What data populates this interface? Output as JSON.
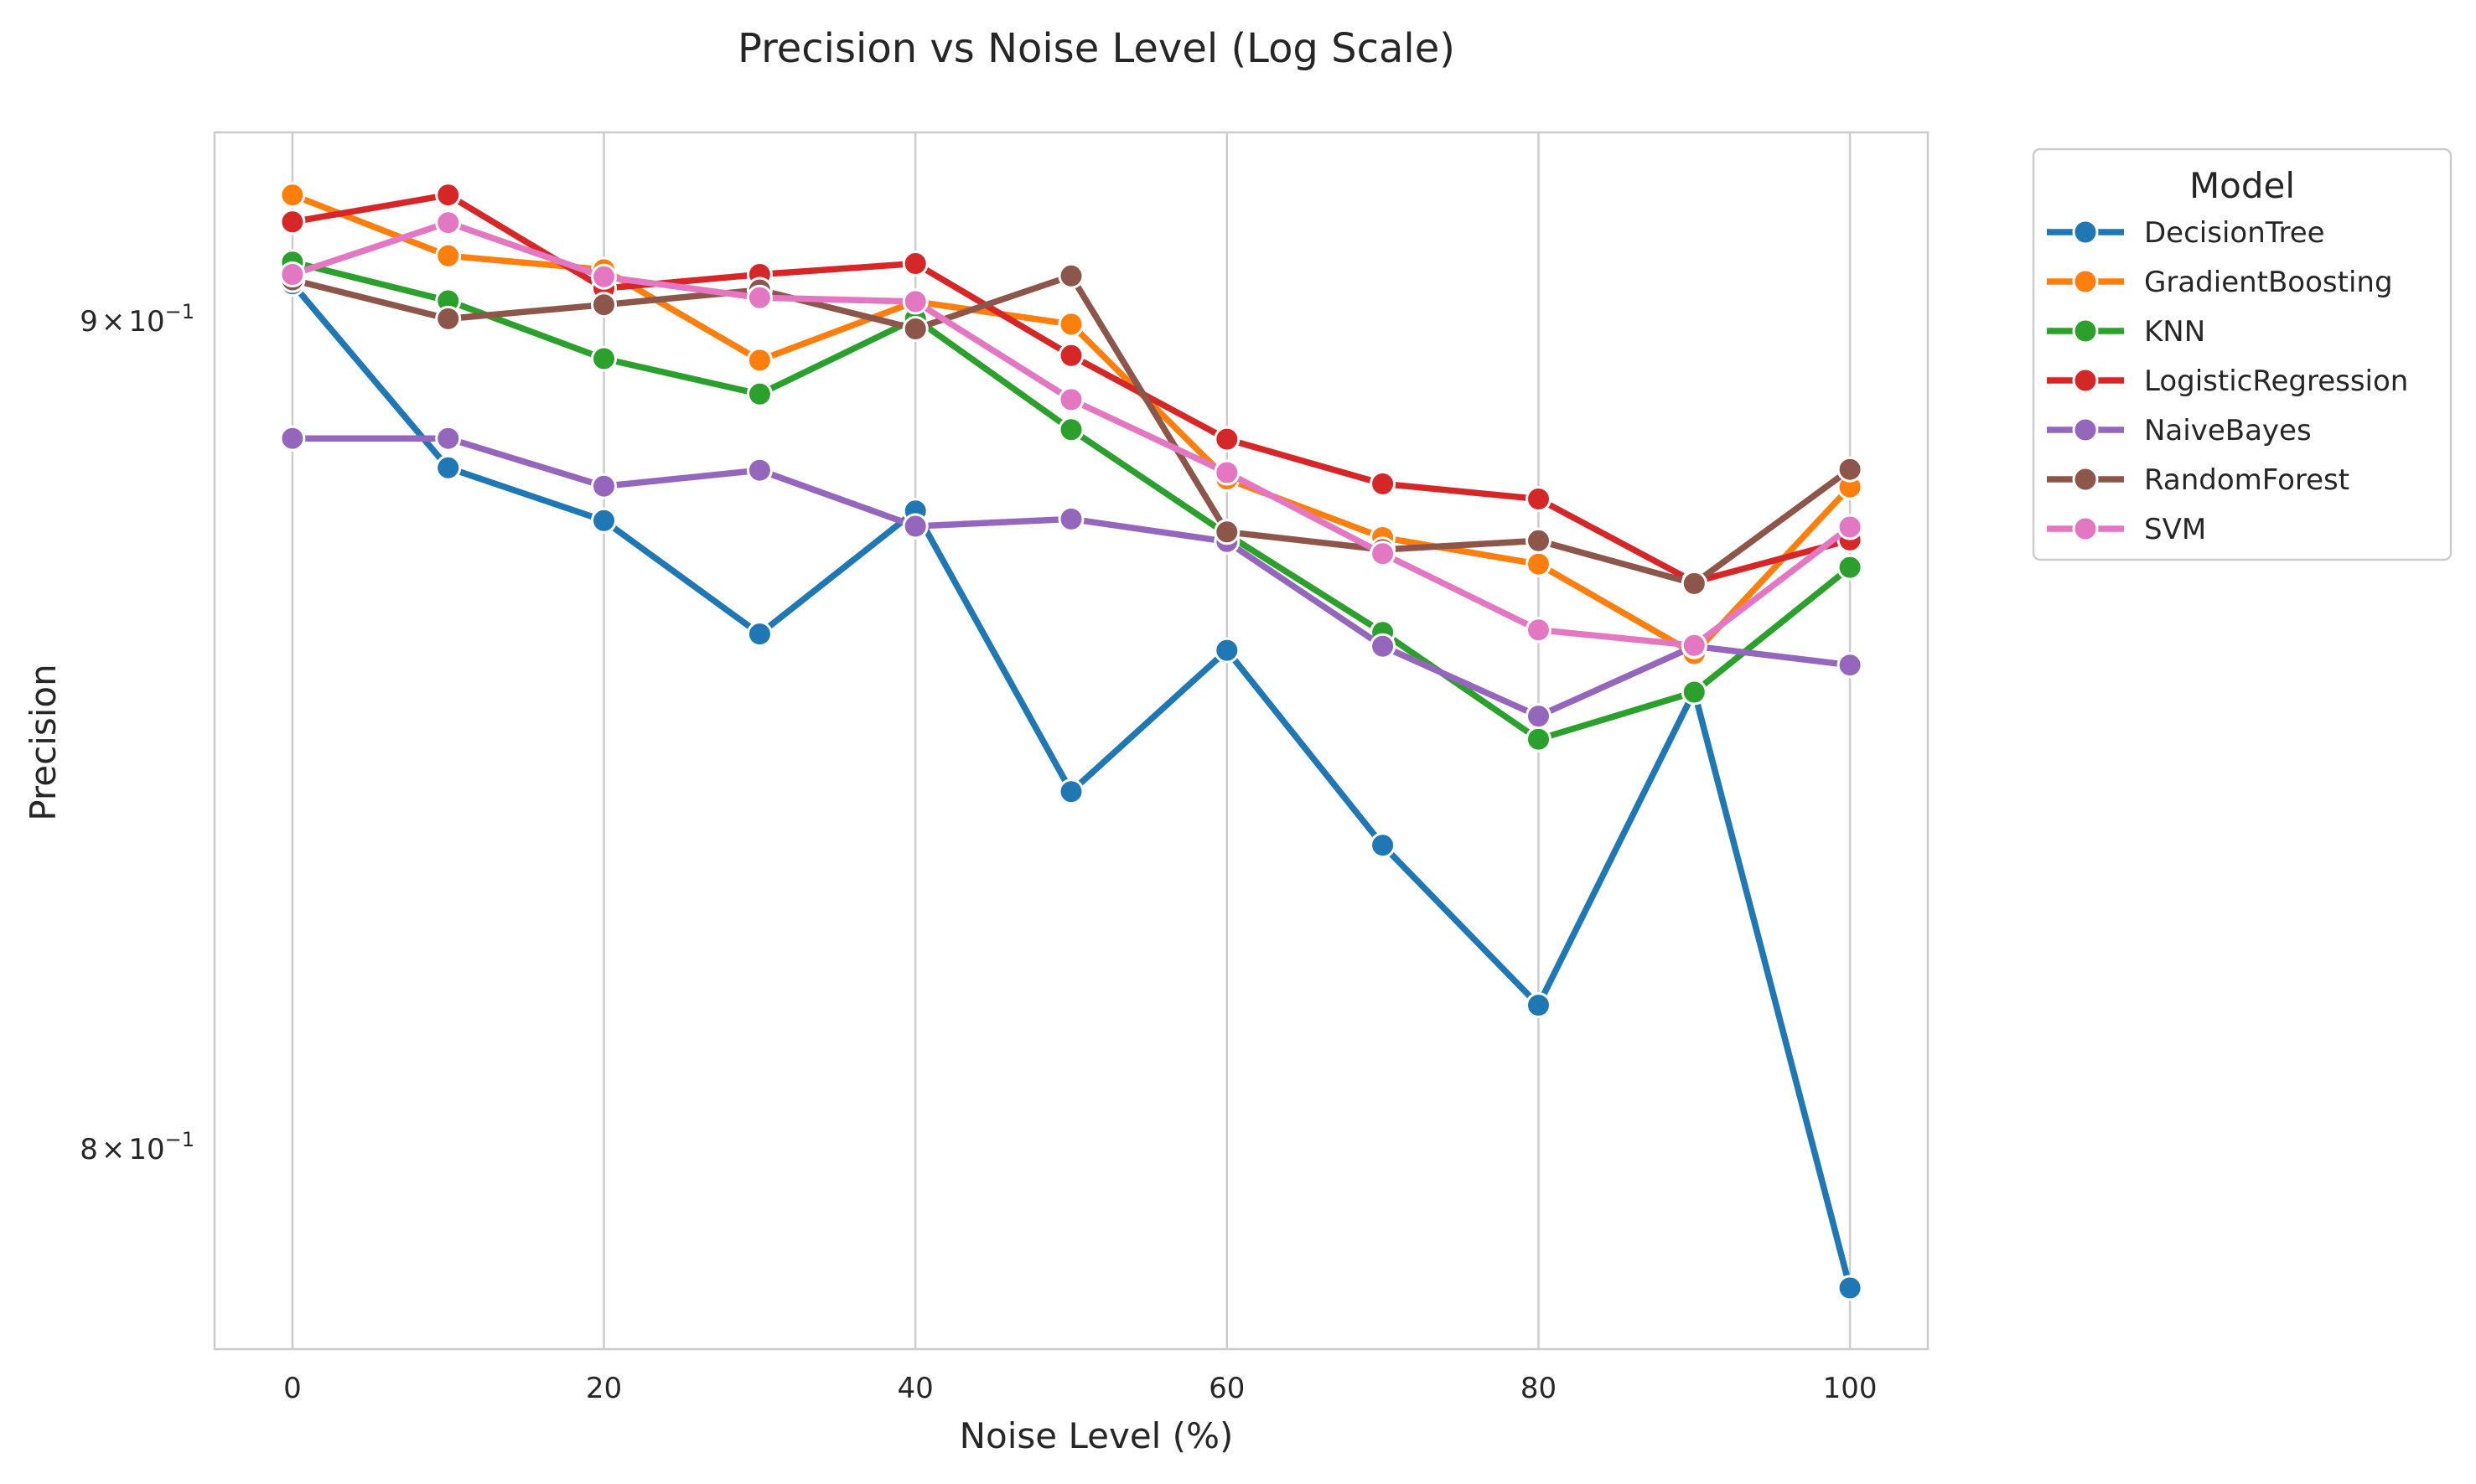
{
  "chart_data": {
    "type": "line",
    "title": "Precision vs Noise Level (Log Scale)",
    "xlabel": "Noise Level (%)",
    "ylabel": "Precision",
    "x": [
      0,
      10,
      20,
      30,
      40,
      50,
      60,
      70,
      80,
      90,
      100
    ],
    "xlim": [
      -5,
      105
    ],
    "xticks": [
      0,
      20,
      40,
      60,
      80,
      100
    ],
    "xtick_labels": [
      "0",
      "20",
      "40",
      "60",
      "80",
      "100"
    ],
    "yscale": "log",
    "ylim": [
      0.7775,
      0.9245
    ],
    "yticks": [
      0.8,
      0.9
    ],
    "ytick_labels": [
      {
        "mantissa": "8",
        "base": "10",
        "exponent": "−1"
      },
      {
        "mantissa": "9",
        "base": "10",
        "exponent": "−1"
      }
    ],
    "grid": "vertical",
    "legend": {
      "title": "Model",
      "placement": "outside-top-right"
    },
    "series": [
      {
        "name": "DecisionTree",
        "color": "#1f77b4",
        "values": [
          0.9048,
          0.8814,
          0.8748,
          0.8608,
          0.876,
          0.8417,
          0.8588,
          0.8353,
          0.8165,
          0.8538,
          0.7843
        ]
      },
      {
        "name": "GradientBoosting",
        "color": "#ff7f0e",
        "values": [
          0.9163,
          0.9084,
          0.9066,
          0.895,
          0.9025,
          0.8996,
          0.88,
          0.8727,
          0.8694,
          0.8584,
          0.879
        ]
      },
      {
        "name": "KNN",
        "color": "#2ca02c",
        "values": [
          0.9076,
          0.9026,
          0.8952,
          0.8907,
          0.9003,
          0.8862,
          0.8731,
          0.861,
          0.848,
          0.8537,
          0.869
        ]
      },
      {
        "name": "LogisticRegression",
        "color": "#d62728",
        "values": [
          0.9128,
          0.9163,
          0.9042,
          0.906,
          0.9074,
          0.8956,
          0.885,
          0.8794,
          0.8775,
          0.8672,
          0.8724
        ]
      },
      {
        "name": "NaiveBayes",
        "color": "#9467bd",
        "values": [
          0.8851,
          0.8851,
          0.8791,
          0.8811,
          0.8741,
          0.875,
          0.8722,
          0.8593,
          0.8508,
          0.8593,
          0.857
        ]
      },
      {
        "name": "RandomForest",
        "color": "#8c564b",
        "values": [
          0.9053,
          0.9003,
          0.9021,
          0.904,
          0.899,
          0.9058,
          0.8734,
          0.8712,
          0.8723,
          0.867,
          0.8812
        ]
      },
      {
        "name": "SVM",
        "color": "#e377c2",
        "values": [
          0.906,
          0.9127,
          0.9057,
          0.903,
          0.9025,
          0.89,
          0.8808,
          0.8707,
          0.8613,
          0.8594,
          0.874
        ]
      }
    ]
  }
}
